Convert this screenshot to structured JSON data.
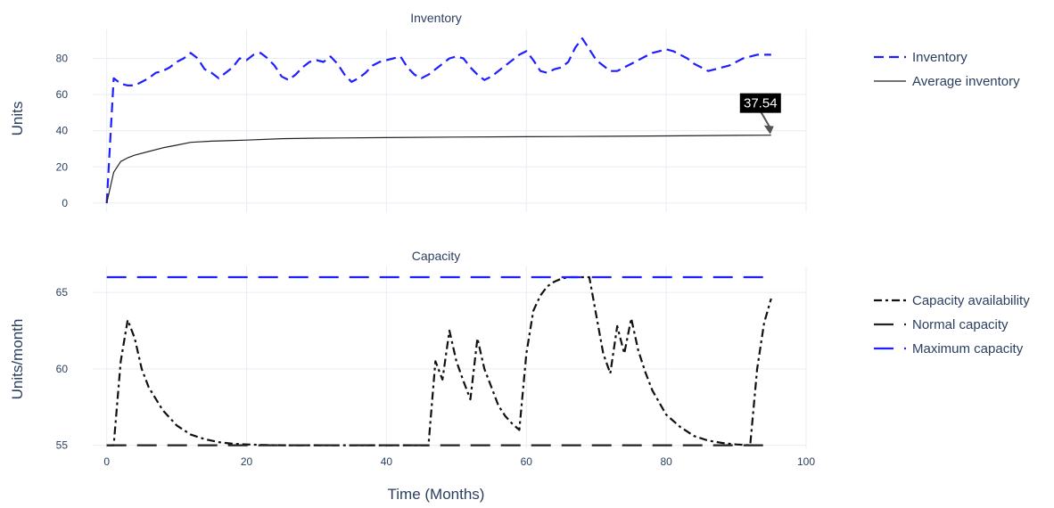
{
  "chart_data": [
    {
      "type": "line",
      "title": "Inventory",
      "ylabel": "Units",
      "xlim": [
        -2,
        100
      ],
      "ylim": [
        -5,
        96
      ],
      "x_ticks": [
        0,
        20,
        40,
        60,
        80,
        100
      ],
      "y_ticks": [
        0,
        20,
        40,
        60,
        80
      ],
      "grid": true,
      "legend_position": "right",
      "series": [
        {
          "name": "Inventory",
          "color": "#1f1fff",
          "dash": "dash",
          "x": [
            0,
            1,
            2,
            3,
            4,
            5,
            6,
            7,
            8,
            9,
            10,
            11,
            12,
            13,
            14,
            15,
            16,
            17,
            18,
            19,
            20,
            21,
            22,
            23,
            24,
            25,
            26,
            27,
            28,
            29,
            30,
            31,
            32,
            33,
            34,
            35,
            36,
            37,
            38,
            39,
            40,
            41,
            42,
            43,
            44,
            45,
            46,
            47,
            48,
            49,
            50,
            51,
            52,
            53,
            54,
            55,
            56,
            57,
            58,
            59,
            60,
            61,
            62,
            63,
            64,
            65,
            66,
            67,
            68,
            69,
            70,
            71,
            72,
            73,
            74,
            75,
            76,
            77,
            78,
            79,
            80,
            81,
            82,
            83,
            84,
            85,
            86,
            87,
            88,
            89,
            90,
            91,
            92,
            93,
            94,
            95
          ],
          "values": [
            0,
            69,
            66,
            65,
            65,
            67,
            69,
            72,
            73,
            75,
            78,
            80,
            83,
            80,
            74,
            72,
            69,
            72,
            75,
            80,
            79,
            82,
            83,
            80,
            76,
            70,
            68,
            71,
            75,
            78,
            79,
            78,
            81,
            77,
            71,
            67,
            69,
            72,
            76,
            78,
            79,
            80,
            81,
            75,
            71,
            69,
            71,
            74,
            77,
            80,
            81,
            80,
            75,
            71,
            68,
            70,
            73,
            76,
            79,
            82,
            84,
            79,
            73,
            72,
            74,
            75,
            78,
            86,
            91,
            85,
            79,
            76,
            73,
            73,
            75,
            77,
            79,
            81,
            83,
            84,
            85,
            84,
            82,
            80,
            77,
            75,
            73,
            74,
            75,
            76,
            78,
            80,
            81,
            82,
            82,
            82
          ]
        },
        {
          "name": "Average inventory",
          "color": "#222222",
          "dash": "solid",
          "x": [
            0,
            1,
            2,
            3,
            4,
            6,
            8,
            10,
            12,
            15,
            20,
            25,
            30,
            40,
            50,
            60,
            70,
            80,
            90,
            95
          ],
          "values": [
            0,
            17,
            23,
            25,
            26.5,
            28.5,
            30.5,
            32,
            33.6,
            34.2,
            34.8,
            35.6,
            35.9,
            36.2,
            36.5,
            36.7,
            36.9,
            37.1,
            37.4,
            37.54
          ]
        }
      ],
      "annotations": [
        {
          "text": "37.54",
          "x": 95,
          "y": 37.54
        }
      ]
    },
    {
      "type": "line",
      "title": "Capacity",
      "ylabel": "Units/month",
      "xlabel": "Time (Months)",
      "xlim": [
        -2,
        100
      ],
      "ylim": [
        54.8,
        66.7
      ],
      "x_ticks": [
        0,
        20,
        40,
        60,
        80,
        100
      ],
      "y_ticks": [
        55,
        60,
        65
      ],
      "grid": true,
      "legend_position": "right",
      "series": [
        {
          "name": "Capacity availability",
          "color": "#111111",
          "dash": "dashdot",
          "x": [
            0,
            1,
            2,
            3,
            4,
            5,
            6,
            8,
            10,
            12,
            14,
            16,
            18,
            20,
            22,
            25,
            30,
            40,
            46,
            47,
            48,
            49,
            50,
            51,
            52,
            53,
            54,
            55,
            56,
            57,
            58,
            59,
            60,
            61,
            62,
            63,
            64,
            65,
            66,
            67,
            68,
            69,
            70,
            71,
            72,
            73,
            74,
            75,
            76,
            77,
            78,
            79,
            80,
            82,
            84,
            86,
            88,
            90,
            92,
            93,
            94,
            95
          ],
          "values": [
            55,
            55,
            60.5,
            63.2,
            62,
            60,
            58.8,
            57.3,
            56.3,
            55.7,
            55.4,
            55.2,
            55.1,
            55.05,
            55.02,
            55,
            55,
            55,
            55,
            60.5,
            59.3,
            62.5,
            60.5,
            59.2,
            58,
            62,
            60,
            58.8,
            57.6,
            56.9,
            56.4,
            56,
            61,
            63.8,
            64.8,
            65.4,
            65.7,
            65.9,
            66,
            66,
            66,
            66,
            63.5,
            61,
            59.7,
            62.8,
            61,
            63.3,
            61.2,
            59.8,
            58.6,
            57.8,
            57,
            56.2,
            55.6,
            55.3,
            55.15,
            55.05,
            55,
            60,
            63,
            64.6
          ]
        },
        {
          "name": "Normal capacity",
          "color": "#222222",
          "dash": "longdash",
          "x": [
            0,
            95
          ],
          "values": [
            55,
            55
          ]
        },
        {
          "name": "Maximum capacity",
          "color": "#1f1fff",
          "dash": "longdash",
          "x": [
            0,
            95
          ],
          "values": [
            66,
            66
          ]
        }
      ]
    }
  ]
}
